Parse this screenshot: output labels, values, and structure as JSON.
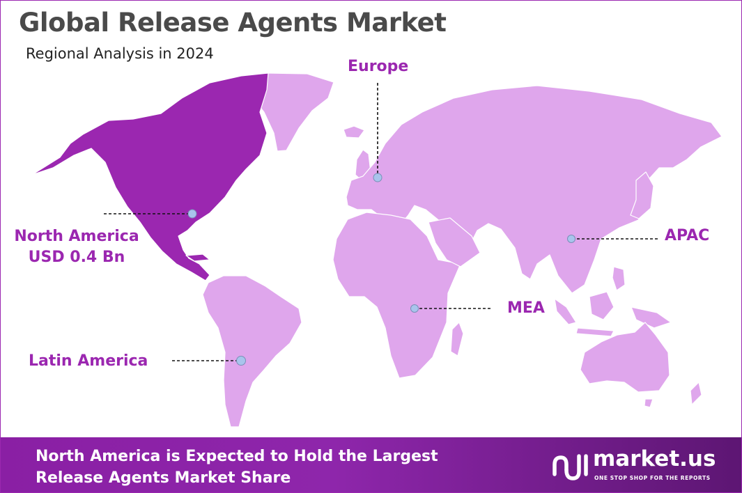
{
  "title": "Global Release Agents Market",
  "subtitle": "Regional Analysis in 2024",
  "regions": [
    {
      "name": "North America",
      "value": "USD 0.4 Bn"
    },
    {
      "name": "Europe"
    },
    {
      "name": "APAC"
    },
    {
      "name": "MEA"
    },
    {
      "name": "Latin America"
    }
  ],
  "colors": {
    "highlight": "#9b27b0",
    "land": "#dfa6ec",
    "marker": "#a9c4ec",
    "title": "#4a4a4a"
  },
  "banner": {
    "line1": "North America is Expected to Hold the Largest",
    "line2": "Release Agents Market Share"
  },
  "brand": {
    "name": "market.us",
    "tagline": "ONE STOP SHOP FOR THE REPORTS",
    "icon": "market-us-logo-icon"
  }
}
